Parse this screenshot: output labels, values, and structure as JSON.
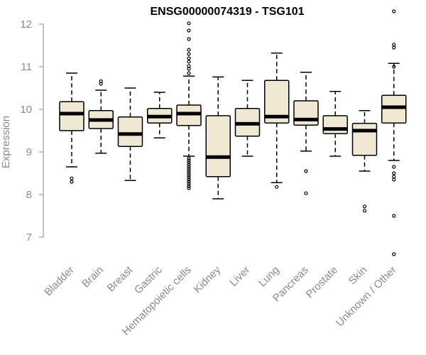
{
  "chart_data": {
    "type": "boxplot",
    "title": "ENSG00000074319 - TSG101",
    "xlabel": "",
    "ylabel": "Expression",
    "ylim": [
      6.5,
      12.4
    ],
    "yticks": [
      7,
      8,
      9,
      10,
      11,
      12
    ],
    "box_fill": "#efe8d2",
    "box_stroke": "#000000",
    "axis_color": "#8a8a8a",
    "categories": [
      "Bladder",
      "Brain",
      "Breast",
      "Gastric",
      "Hematopoietic cells",
      "Kidney",
      "Liver",
      "Lung",
      "Pancreas",
      "Prostate",
      "Skin",
      "Unknown / Other"
    ],
    "boxes": [
      {
        "whisker_low": 8.65,
        "q1": 9.5,
        "median": 9.9,
        "q3": 10.18,
        "whisker_high": 10.85,
        "outliers": [
          8.3,
          8.38
        ]
      },
      {
        "whisker_low": 8.97,
        "q1": 9.55,
        "median": 9.75,
        "q3": 9.97,
        "whisker_high": 10.45,
        "outliers": [
          10.6,
          10.66
        ]
      },
      {
        "whisker_low": 8.33,
        "q1": 9.13,
        "median": 9.42,
        "q3": 9.82,
        "whisker_high": 10.5,
        "outliers": []
      },
      {
        "whisker_low": 9.33,
        "q1": 9.68,
        "median": 9.83,
        "q3": 10.02,
        "whisker_high": 10.4,
        "outliers": []
      },
      {
        "whisker_low": 8.9,
        "q1": 9.62,
        "median": 9.9,
        "q3": 10.1,
        "whisker_high": 10.78,
        "outliers": [
          12.02,
          11.85,
          11.65,
          11.4,
          11.3,
          11.2,
          11.12,
          11.02,
          10.95,
          10.85,
          8.85,
          8.8,
          8.75,
          8.7,
          8.65,
          8.6,
          8.55,
          8.5,
          8.45,
          8.4,
          8.35,
          8.3,
          8.25,
          8.2,
          8.15
        ]
      },
      {
        "whisker_low": 7.9,
        "q1": 8.42,
        "median": 8.88,
        "q3": 9.85,
        "whisker_high": 10.76,
        "outliers": []
      },
      {
        "whisker_low": 8.9,
        "q1": 9.37,
        "median": 9.66,
        "q3": 10.02,
        "whisker_high": 10.68,
        "outliers": []
      },
      {
        "whisker_low": 8.28,
        "q1": 9.68,
        "median": 9.83,
        "q3": 10.68,
        "whisker_high": 11.32,
        "outliers": [
          8.18
        ]
      },
      {
        "whisker_low": 9.02,
        "q1": 9.63,
        "median": 9.76,
        "q3": 10.2,
        "whisker_high": 10.87,
        "outliers": [
          8.55,
          8.03
        ]
      },
      {
        "whisker_low": 8.9,
        "q1": 9.43,
        "median": 9.54,
        "q3": 9.85,
        "whisker_high": 10.42,
        "outliers": []
      },
      {
        "whisker_low": 8.55,
        "q1": 8.92,
        "median": 9.5,
        "q3": 9.67,
        "whisker_high": 9.97,
        "outliers": [
          7.72,
          7.62
        ]
      },
      {
        "whisker_low": 8.8,
        "q1": 9.68,
        "median": 10.05,
        "q3": 10.33,
        "whisker_high": 11.08,
        "outliers": [
          12.3,
          11.52,
          11.45,
          11.0,
          8.65,
          8.5,
          8.42,
          8.35,
          7.5,
          6.6
        ]
      }
    ]
  }
}
